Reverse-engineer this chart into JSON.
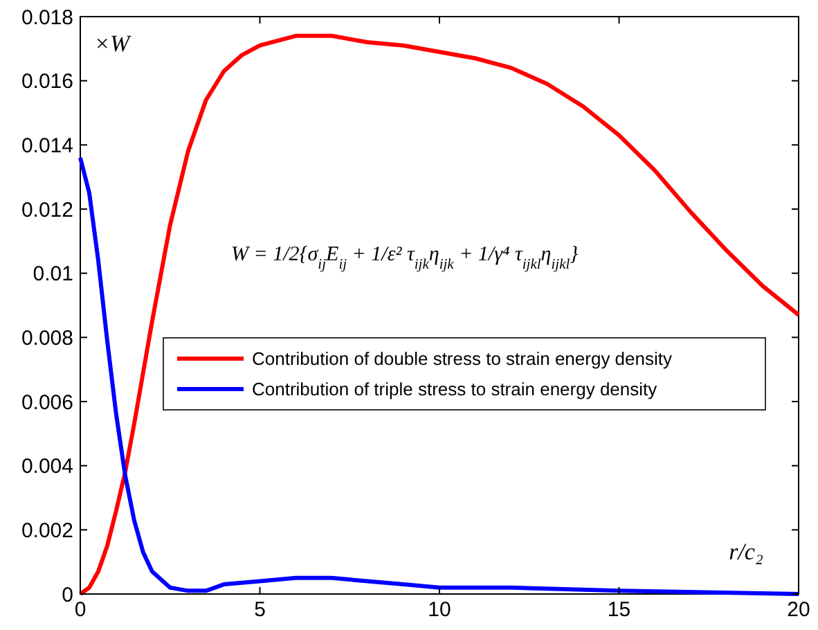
{
  "chart_data": {
    "type": "line",
    "xlabel": "r/c₂",
    "ylabel": "×W",
    "annotations": [
      "W = 1/2{σ$_{ij}$E$_{ij}$ + 1/ε² τ$_{ijk}$η$_{ijk}$ + 1/γ⁴ τ$_{ijkl}$η$_{ijkl}$}"
    ],
    "xlim": [
      0,
      20
    ],
    "ylim": [
      0,
      0.018
    ],
    "xticks": [
      0,
      5,
      10,
      15,
      20
    ],
    "yticks": [
      0,
      0.002,
      0.004,
      0.006,
      0.008,
      0.01,
      0.012,
      0.014,
      0.016,
      0.018
    ],
    "grid": false,
    "legend": "center",
    "line_style": "solid",
    "series": [
      {
        "name": "Contribution of double stress to strain energy density",
        "color": "#ff0000",
        "x": [
          0,
          0.25,
          0.5,
          0.75,
          1,
          1.25,
          1.5,
          2,
          2.5,
          3,
          3.5,
          4,
          4.5,
          5,
          6,
          7,
          8,
          9,
          10,
          11,
          12,
          13,
          14,
          15,
          16,
          17,
          18,
          19,
          20
        ],
        "values": [
          0,
          0.0002,
          0.0007,
          0.0015,
          0.0026,
          0.0038,
          0.0053,
          0.0085,
          0.0115,
          0.0138,
          0.0154,
          0.0163,
          0.0168,
          0.0171,
          0.0174,
          0.0174,
          0.0172,
          0.0171,
          0.0169,
          0.0167,
          0.0164,
          0.0159,
          0.0152,
          0.0143,
          0.0132,
          0.0119,
          0.0107,
          0.0096,
          0.0087
        ]
      },
      {
        "name": "Contribution of triple stress to strain energy density",
        "color": "#0000ff",
        "x": [
          0,
          0.25,
          0.5,
          0.75,
          1,
          1.25,
          1.5,
          1.75,
          2,
          2.5,
          3,
          3.5,
          4,
          5,
          6,
          7,
          8,
          9,
          10,
          12,
          15,
          20
        ],
        "values": [
          0.0136,
          0.0125,
          0.0104,
          0.0079,
          0.0056,
          0.0037,
          0.0023,
          0.0013,
          0.0007,
          0.0002,
          0.0001,
          0.0001,
          0.0003,
          0.0004,
          0.0005,
          0.0005,
          0.0004,
          0.0003,
          0.0002,
          0.0002,
          0.0001,
          0
        ]
      }
    ]
  }
}
